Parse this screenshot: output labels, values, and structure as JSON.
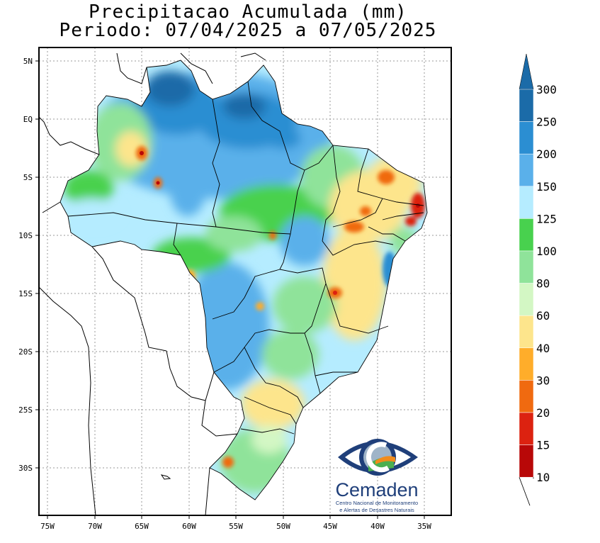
{
  "title": {
    "line1": "Precipitacao Acumulada (mm)",
    "line2": "Periodo: 07/04/2025 a 07/05/2025"
  },
  "axes": {
    "x_ticks": [
      "75W",
      "70W",
      "65W",
      "60W",
      "55W",
      "50W",
      "45W",
      "40W",
      "35W"
    ],
    "y_ticks": [
      "5N",
      "EQ",
      "5S",
      "10S",
      "15S",
      "20S",
      "25S",
      "30S"
    ]
  },
  "legend": {
    "levels": [
      "300",
      "250",
      "200",
      "150",
      "125",
      "100",
      "80",
      "60",
      "40",
      "30",
      "20",
      "15",
      "10"
    ],
    "colors": [
      "#1b6ba8",
      "#2b8ed2",
      "#5ab0ea",
      "#b5ecff",
      "#48d14e",
      "#8fe39a",
      "#d3f7c4",
      "#fde58c",
      "#ffad2a",
      "#f06a10",
      "#dc2210",
      "#b80808"
    ]
  },
  "logo": {
    "name": "Cemaden",
    "line1": "Centro Nacional de Monitoramento",
    "line2": "e Alertas de Desastres Naturais"
  }
}
